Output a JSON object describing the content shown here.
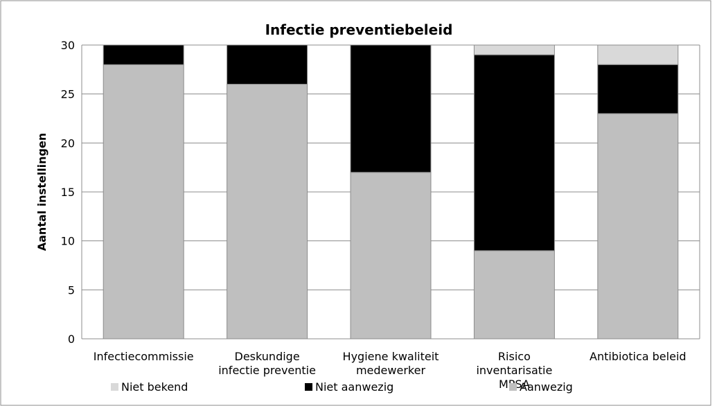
{
  "chart_data": {
    "type": "bar",
    "stacked": true,
    "title": "Infectie preventiebeleid",
    "xlabel": "",
    "ylabel": "Aantal instellingen",
    "ylim": [
      0,
      30
    ],
    "yticks": [
      0,
      5,
      10,
      15,
      20,
      25,
      30
    ],
    "grid": true,
    "legend_position": "bottom",
    "categories": [
      [
        "Infectiecommissie"
      ],
      [
        "Deskundige",
        "infectie preventie"
      ],
      [
        "Hygiene kwaliteit",
        "medewerker"
      ],
      [
        "Risico",
        "inventarisatie",
        "MPSA"
      ],
      [
        "Antibiotica beleid"
      ]
    ],
    "series": [
      {
        "name": "Aanwezig",
        "color": "#bfbfbf",
        "values": [
          28,
          26,
          17,
          9,
          23
        ]
      },
      {
        "name": "Niet aanwezig",
        "color": "#000000",
        "values": [
          2,
          4,
          13,
          20,
          5
        ]
      },
      {
        "name": "Niet bekend",
        "color": "#d9d9d9",
        "values": [
          0,
          0,
          0,
          1,
          2
        ]
      }
    ],
    "legend_order": [
      "Niet bekend",
      "Niet aanwezig",
      "Aanwezig"
    ]
  }
}
